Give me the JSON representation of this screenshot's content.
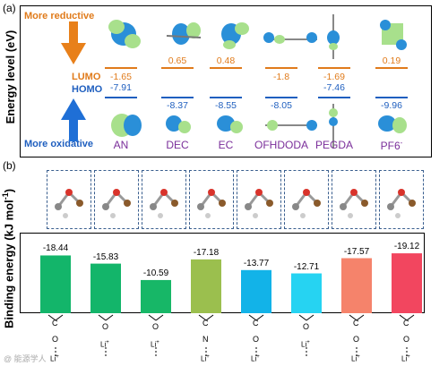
{
  "panel_a": {
    "label": "(a)",
    "ylabel": "Energy level (eV)",
    "more_reductive": "More reductive",
    "more_oxidative": "More oxidative",
    "lumo_label": "LUMO",
    "homo_label": "HOMO",
    "colors": {
      "lumo": "#e07b1b",
      "homo": "#1f5fbf",
      "names": "#7a2e9a",
      "reductive_arrow": "#e8801a",
      "oxidative_arrow": "#1f6fd6"
    },
    "molecules": [
      {
        "name": "AN",
        "lumo": "-1.65",
        "homo": "-7.91"
      },
      {
        "name": "DEC",
        "lumo": "0.65",
        "homo": "-8.37"
      },
      {
        "name": "EC",
        "lumo": "0.48",
        "homo": "-8.55"
      },
      {
        "name": "OFHDODA",
        "lumo": "-1.8",
        "homo": "-8.05"
      },
      {
        "name": "PEGDA",
        "lumo": "-1.69",
        "homo": "-7.46"
      },
      {
        "name": "PF6",
        "name_sup": "-",
        "lumo": "0.19",
        "homo": "-9.96"
      }
    ]
  },
  "panel_b": {
    "label": "(b)",
    "ylabel": "Binding energy (kJ mol",
    "ylabel_sup": "-1",
    "ylabel_tail": ")",
    "li_label": "Li",
    "li_sup": "+"
  },
  "chart_data": {
    "type": "bar",
    "values": [
      -18.44,
      -15.83,
      -10.59,
      -17.18,
      -13.77,
      -12.71,
      -17.57,
      -19.12
    ],
    "labels": [
      "-18.44",
      "-15.83",
      "-10.59",
      "-17.18",
      "-13.77",
      "-12.71",
      "-17.57",
      "-19.12"
    ],
    "colors": [
      "#13b56a",
      "#13b56a",
      "#17b767",
      "#9bbf4e",
      "#12b3e8",
      "#26d3f2",
      "#f5836b",
      "#f2465f"
    ],
    "coordination": [
      "O",
      "O",
      "O",
      "N",
      "O",
      "O",
      "O",
      "O"
    ],
    "bond": [
      "C",
      "",
      "",
      "C",
      "C",
      "",
      "C",
      "C"
    ]
  },
  "watermark": "@ 能源学人"
}
